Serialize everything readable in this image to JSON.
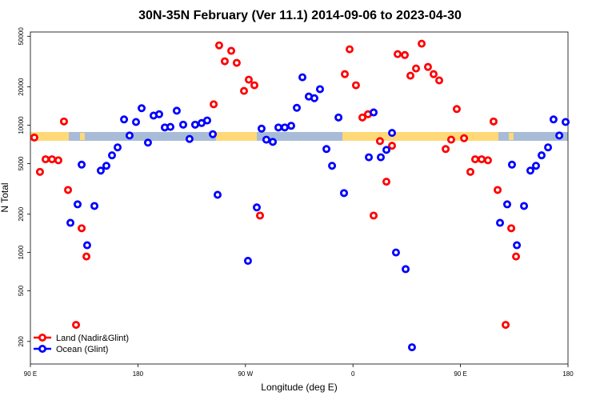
{
  "chart_data": {
    "type": "scatter",
    "title": "30N-35N February (Ver 11.1)   2014-09-06 to 2023-04-30",
    "xlabel": "Longitude (deg E)",
    "ylabel": "N Total",
    "xlim": [
      90,
      540
    ],
    "xticks": [
      {
        "value": 90,
        "label": "90 E"
      },
      {
        "value": 180,
        "label": "180"
      },
      {
        "value": 270,
        "label": "90 W"
      },
      {
        "value": 360,
        "label": "0"
      },
      {
        "value": 450,
        "label": "90 E"
      },
      {
        "value": 540,
        "label": "180"
      }
    ],
    "ylim": [
      133,
      54000
    ],
    "yticks": [
      200,
      500,
      1000,
      2000,
      5000,
      10000,
      20000,
      50000
    ],
    "log_y": true,
    "legend": "bottomleft",
    "series": [
      {
        "name": "Land (Nadir&Glint)",
        "color": "#ff0000",
        "x": [
          93.3,
          98,
          102.7,
          108.1,
          113.4,
          118.1,
          121.5,
          128.2,
          132.9,
          136.9,
          243.4,
          248,
          252.7,
          258.1,
          262.7,
          268.8,
          272.8,
          277.5,
          282.2,
          353.2,
          357.2,
          362.5,
          367.9,
          372.6,
          377.3,
          382.6,
          388,
          392.7,
          397.4,
          403.4,
          408.1,
          412.8,
          417.5,
          422.8,
          427.5,
          432.2,
          437.6,
          442.2,
          446.9,
          453,
          458.3,
          462.3,
          467.7,
          473,
          477.7,
          481.1,
          487.8,
          492.5,
          496.5
        ],
        "values": [
          8000,
          4300,
          5400,
          5400,
          5300,
          10700,
          3100,
          270,
          1550,
          930,
          14600,
          42400,
          31800,
          38400,
          30900,
          18600,
          22800,
          20600,
          1950,
          25200,
          39500,
          20600,
          11500,
          12200,
          1950,
          7500,
          3600,
          6900,
          36200,
          35600,
          24500,
          27900,
          43700,
          28700,
          25200,
          22500,
          6500,
          7700,
          13400,
          7900,
          4300,
          5400,
          5400,
          5300,
          10700,
          3100,
          270,
          1550,
          930
        ]
      },
      {
        "name": "Ocean (Glint)",
        "color": "#0000ff",
        "x": [
          123.5,
          129.5,
          132.9,
          137.5,
          143.6,
          148.9,
          153.6,
          158.3,
          163,
          168.4,
          173,
          178.4,
          183.1,
          188.4,
          193.1,
          197.8,
          202.5,
          207.2,
          212.5,
          217.9,
          223.2,
          227.9,
          233.3,
          238,
          242.7,
          246.7,
          272.1,
          279.5,
          283.5,
          287.5,
          292.9,
          297.6,
          302.9,
          308.3,
          313,
          317.7,
          323,
          327.7,
          332.4,
          337.8,
          342.5,
          347.9,
          352.5,
          373.3,
          377.3,
          383.3,
          388,
          392.7,
          396,
          404.1,
          409.4,
          483.1,
          489.1,
          493.1,
          497.2,
          503.2,
          508.5,
          513.2,
          517.9,
          523.3,
          527.9,
          532.7,
          538
        ],
        "values": [
          1710,
          2390,
          4900,
          1140,
          2320,
          4400,
          4800,
          5800,
          6700,
          11100,
          8300,
          10600,
          13600,
          7300,
          11900,
          12200,
          9600,
          9700,
          13000,
          10100,
          7800,
          10100,
          10400,
          10900,
          8500,
          2840,
          860,
          2260,
          9400,
          7700,
          7400,
          9600,
          9600,
          9900,
          13700,
          23800,
          16800,
          16300,
          19200,
          6500,
          4800,
          11500,
          2930,
          5600,
          12600,
          5600,
          6400,
          8700,
          1000,
          740,
          180,
          1710,
          2390,
          4900,
          1140,
          2320,
          4400,
          4800,
          5800,
          6700,
          11100,
          8300,
          10600
        ]
      }
    ]
  }
}
